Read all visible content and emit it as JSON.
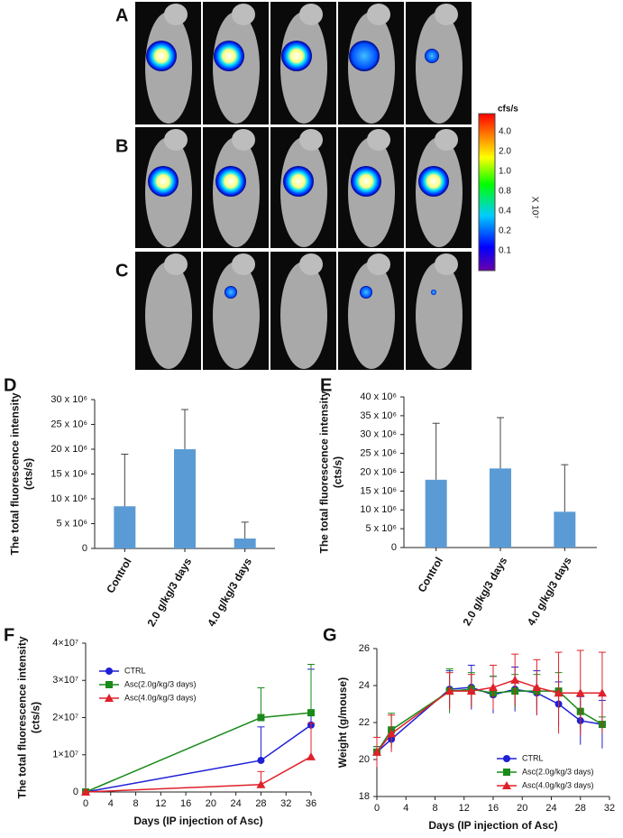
{
  "image_panels": [
    "A",
    "B",
    "C"
  ],
  "colorbar": {
    "unit": "cfs/s",
    "scale": "X 10⁷",
    "labels": [
      "4.0",
      "2.0",
      "1.0",
      "0.8",
      "0.4",
      "0.2",
      "0.1"
    ]
  },
  "chart_data": [
    {
      "type": "bar",
      "label": "D",
      "ylabel": [
        "The total fluorescence intensity",
        "(cts/s)"
      ],
      "categories": [
        "Control",
        "2.0 g/kg/3 days",
        "4.0 g/kg/3 days"
      ],
      "values": [
        8500000,
        20000000,
        2000000
      ],
      "errors": [
        10500000,
        8000000,
        3300000
      ],
      "color": "#5b9bd5",
      "ylim": [
        0,
        30000000
      ],
      "yticks": [
        0,
        {
          "value": 5000000,
          "label": "5 x 10⁶"
        },
        {
          "value": 10000000,
          "label": "10 x 10⁶"
        },
        {
          "value": 15000000,
          "label": "15 x 10⁶"
        },
        {
          "value": 20000000,
          "label": "20 x 10⁶"
        },
        {
          "value": 25000000,
          "label": "25 x 10⁶"
        },
        {
          "value": 30000000,
          "label": "30 x 10⁶"
        }
      ]
    },
    {
      "type": "bar",
      "label": "E",
      "ylabel": [
        "The total fluorescence intensity",
        "(cts/s)"
      ],
      "categories": [
        "Control",
        "2.0 g/kg/3 days",
        "4.0 g/kg/3 days"
      ],
      "values": [
        18000000,
        21000000,
        9500000
      ],
      "errors": [
        15000000,
        13500000,
        12500000
      ],
      "color": "#5b9bd5",
      "ylim": [
        0,
        40000000
      ],
      "yticks": [
        0,
        {
          "value": 5000000,
          "label": "5 x 10⁶"
        },
        {
          "value": 10000000,
          "label": "10 x 10⁶"
        },
        {
          "value": 15000000,
          "label": "15 x 10⁶"
        },
        {
          "value": 20000000,
          "label": "20 x 10⁶"
        },
        {
          "value": 25000000,
          "label": "25 x 10⁶"
        },
        {
          "value": 30000000,
          "label": "30 x 10⁶"
        },
        {
          "value": 35000000,
          "label": "35 x 10⁶"
        },
        {
          "value": 40000000,
          "label": "40 x 10⁶"
        }
      ]
    },
    {
      "type": "line",
      "label": "F",
      "ylabel": [
        "The total fluorescence intensity",
        "(cts/s)"
      ],
      "xlabel": "Days (IP injection of Asc)",
      "x": [
        0,
        28,
        36
      ],
      "series": [
        {
          "name": "CTRL",
          "color": "#1f1fd6",
          "marker": "circle",
          "values": [
            0,
            8500000,
            18000000
          ],
          "errors": [
            0,
            9000000,
            15000000
          ]
        },
        {
          "name": "Asc(2.0g/kg/3 days)",
          "color": "#1a8a1a",
          "marker": "square",
          "values": [
            0,
            20000000,
            21300000
          ],
          "errors": [
            0,
            8000000,
            13000000
          ]
        },
        {
          "name": "Asc(4.0g/kg/3 days)",
          "color": "#e0202a",
          "marker": "triangle",
          "values": [
            0,
            2000000,
            9500000
          ],
          "errors": [
            0,
            3500000,
            9000000
          ]
        }
      ],
      "xlim": [
        0,
        36
      ],
      "xticks": [
        0,
        4,
        8,
        12,
        16,
        20,
        24,
        28,
        32,
        36
      ],
      "ylim": [
        0,
        40000000
      ],
      "yticks": [
        0,
        {
          "value": 10000000,
          "label": "1×10⁷"
        },
        {
          "value": 20000000,
          "label": "2×10⁷"
        },
        {
          "value": 30000000,
          "label": "3×10⁷"
        },
        {
          "value": 40000000,
          "label": "4×10⁷"
        }
      ],
      "legend": "top-left"
    },
    {
      "type": "line",
      "label": "G",
      "ylabel": [
        "Weight (g/mouse)"
      ],
      "xlabel": "Days (IP injection of Asc)",
      "x": [
        0,
        2,
        10,
        13,
        16,
        19,
        22,
        25,
        28,
        31
      ],
      "series": [
        {
          "name": "CTRL",
          "color": "#1f1fd6",
          "marker": "circle",
          "values": [
            20.4,
            21.1,
            23.8,
            23.9,
            23.5,
            23.8,
            23.6,
            23.0,
            22.1,
            21.9
          ],
          "errors": [
            0.3,
            0.5,
            1.0,
            1.2,
            1.0,
            1.2,
            1.2,
            1.2,
            1.3,
            1.3
          ]
        },
        {
          "name": "Asc(2.0g/kg/3 days)",
          "color": "#1a8a1a",
          "marker": "square",
          "values": [
            20.4,
            21.6,
            23.7,
            23.8,
            23.6,
            23.7,
            23.7,
            23.7,
            22.6,
            21.9
          ],
          "errors": [
            0.3,
            0.9,
            1.2,
            0.9,
            0.9,
            0.9,
            0.9,
            1.0,
            1.0,
            0.4
          ]
        },
        {
          "name": "Asc(4.0g/kg/3 days)",
          "color": "#e0202a",
          "marker": "triangle",
          "values": [
            20.4,
            21.4,
            23.7,
            23.7,
            23.9,
            24.3,
            23.9,
            23.6,
            23.6,
            23.6
          ],
          "errors": [
            0.8,
            1.0,
            1.0,
            0.9,
            1.2,
            1.4,
            1.5,
            2.2,
            2.3,
            2.2
          ]
        }
      ],
      "xlim": [
        0,
        32
      ],
      "xticks": [
        0,
        4,
        8,
        12,
        16,
        20,
        24,
        28,
        32
      ],
      "ylim": [
        18,
        26
      ],
      "yticks": [
        18,
        20,
        22,
        24,
        26
      ],
      "legend": "bottom-right"
    }
  ]
}
